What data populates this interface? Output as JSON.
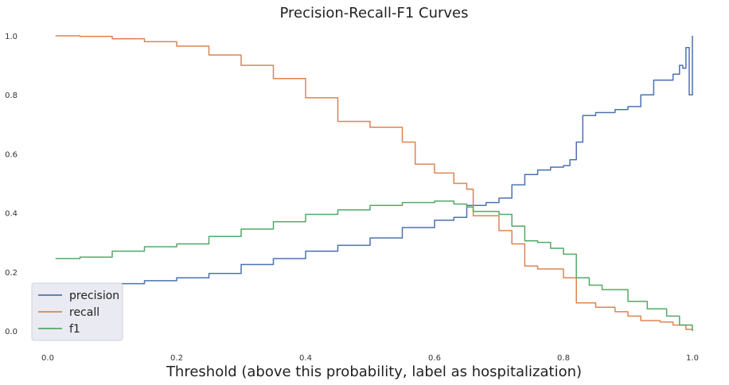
{
  "chart_data": {
    "type": "line",
    "title": "Precision-Recall-F1 Curves",
    "xlabel": "Threshold (above this probability, label as hospitalization)",
    "ylabel": "",
    "xlim": [
      0.0,
      1.0
    ],
    "ylim": [
      0.0,
      1.0
    ],
    "x_ticks": [
      "0.0",
      "0.2",
      "0.4",
      "0.6",
      "0.8",
      "1.0"
    ],
    "y_ticks": [
      "0.0",
      "0.2",
      "0.4",
      "0.6",
      "0.8",
      "1.0"
    ],
    "grid": false,
    "legend_position": "lower-left",
    "series": [
      {
        "name": "precision",
        "color": "#4c72b0",
        "x": [
          0.012,
          0.05,
          0.1,
          0.15,
          0.2,
          0.25,
          0.3,
          0.35,
          0.4,
          0.45,
          0.5,
          0.55,
          0.6,
          0.63,
          0.65,
          0.68,
          0.7,
          0.72,
          0.74,
          0.76,
          0.78,
          0.8,
          0.81,
          0.82,
          0.83,
          0.85,
          0.88,
          0.9,
          0.92,
          0.94,
          0.96,
          0.97,
          0.98,
          0.985,
          0.99,
          0.995,
          1.0
        ],
        "y": [
          0.14,
          0.15,
          0.16,
          0.17,
          0.18,
          0.195,
          0.225,
          0.245,
          0.27,
          0.29,
          0.315,
          0.35,
          0.375,
          0.385,
          0.425,
          0.435,
          0.45,
          0.495,
          0.53,
          0.545,
          0.555,
          0.56,
          0.58,
          0.64,
          0.73,
          0.74,
          0.75,
          0.76,
          0.8,
          0.85,
          0.85,
          0.87,
          0.9,
          0.89,
          0.96,
          0.8,
          1.0
        ]
      },
      {
        "name": "recall",
        "color": "#dd8452",
        "x": [
          0.012,
          0.05,
          0.1,
          0.15,
          0.2,
          0.25,
          0.3,
          0.35,
          0.4,
          0.45,
          0.5,
          0.55,
          0.57,
          0.6,
          0.63,
          0.65,
          0.66,
          0.7,
          0.72,
          0.74,
          0.76,
          0.8,
          0.82,
          0.85,
          0.88,
          0.9,
          0.92,
          0.95,
          0.97,
          0.99,
          1.0
        ],
        "y": [
          1.0,
          0.998,
          0.99,
          0.98,
          0.965,
          0.935,
          0.9,
          0.855,
          0.79,
          0.71,
          0.69,
          0.64,
          0.565,
          0.535,
          0.5,
          0.48,
          0.39,
          0.34,
          0.295,
          0.22,
          0.21,
          0.18,
          0.095,
          0.08,
          0.065,
          0.05,
          0.035,
          0.03,
          0.02,
          0.005,
          0.0
        ]
      },
      {
        "name": "f1",
        "color": "#55a868",
        "x": [
          0.012,
          0.05,
          0.1,
          0.15,
          0.2,
          0.25,
          0.3,
          0.35,
          0.4,
          0.45,
          0.5,
          0.55,
          0.6,
          0.63,
          0.65,
          0.66,
          0.7,
          0.72,
          0.74,
          0.76,
          0.78,
          0.8,
          0.82,
          0.84,
          0.86,
          0.9,
          0.93,
          0.96,
          0.98,
          1.0
        ],
        "y": [
          0.245,
          0.25,
          0.27,
          0.285,
          0.295,
          0.32,
          0.345,
          0.37,
          0.395,
          0.41,
          0.425,
          0.435,
          0.44,
          0.43,
          0.42,
          0.405,
          0.395,
          0.355,
          0.305,
          0.3,
          0.28,
          0.26,
          0.18,
          0.155,
          0.14,
          0.1,
          0.075,
          0.05,
          0.02,
          0.0
        ]
      }
    ]
  }
}
